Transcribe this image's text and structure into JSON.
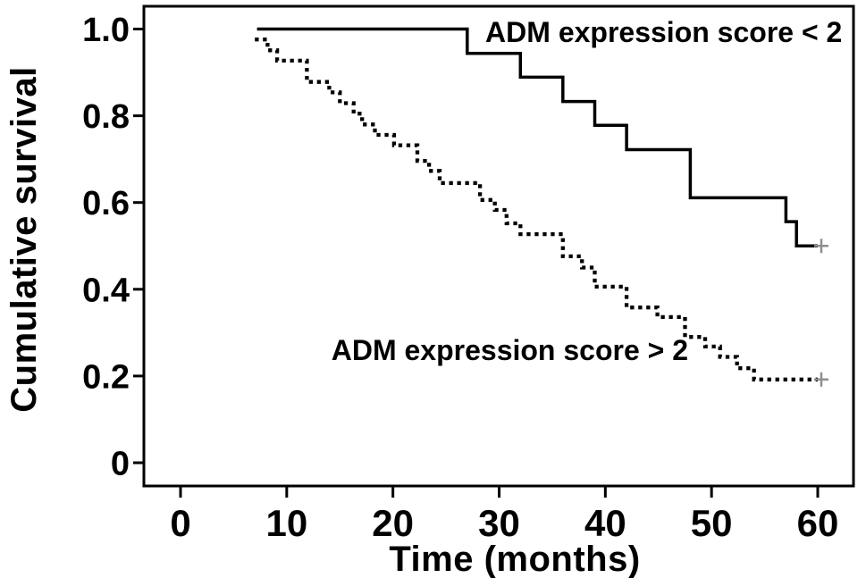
{
  "figure": {
    "kind_label": "Kaplan-Meier cumulative survival plot",
    "background_color": "#ffffff",
    "ink_color": "#000000",
    "censor_mark_color": "#8f8f8f"
  },
  "chart_data": {
    "type": "line",
    "variant": "kaplan_meier_step",
    "title": "",
    "xlabel": "Time (months)",
    "ylabel": "Cumulative survival",
    "x_ticks": [
      0,
      10,
      20,
      30,
      40,
      50,
      60
    ],
    "x_tick_labels": [
      "0",
      "10",
      "20",
      "30",
      "40",
      "50",
      "60"
    ],
    "y_ticks": [
      0,
      0.2,
      0.4,
      0.6,
      0.8,
      1.0
    ],
    "y_tick_labels": [
      "0",
      "0.2",
      "0.4",
      "0.6",
      "0.8",
      "1.0"
    ],
    "xlim": [
      -3.4,
      63.4
    ],
    "ylim": [
      -0.054,
      1.053
    ],
    "grid": false,
    "legend_position": "in-plot-annotations",
    "series": [
      {
        "name": "ADM expression score < 2",
        "line_style": "solid",
        "color": "#000000",
        "steps": [
          [
            7.2,
            1.0
          ],
          [
            27,
            0.944
          ],
          [
            32,
            0.889
          ],
          [
            36,
            0.833
          ],
          [
            39,
            0.778
          ],
          [
            42,
            0.722
          ],
          [
            48,
            0.611
          ],
          [
            57,
            0.556
          ],
          [
            58,
            0.5
          ]
        ],
        "end_time": 60,
        "censored": [
          [
            60,
            0.5
          ]
        ]
      },
      {
        "name": "ADM expression score > 2",
        "line_style": "dotted",
        "color": "#000000",
        "steps": [
          [
            7,
            0.976
          ],
          [
            8.2,
            0.951
          ],
          [
            9.1,
            0.927
          ],
          [
            11.9,
            0.878
          ],
          [
            14,
            0.854
          ],
          [
            15,
            0.829
          ],
          [
            16.3,
            0.805
          ],
          [
            17.1,
            0.78
          ],
          [
            18.3,
            0.756
          ],
          [
            20.1,
            0.732
          ],
          [
            22.3,
            0.696
          ],
          [
            23.4,
            0.673
          ],
          [
            24.4,
            0.645
          ],
          [
            28.2,
            0.606
          ],
          [
            29.6,
            0.583
          ],
          [
            30.7,
            0.552
          ],
          [
            32,
            0.527
          ],
          [
            36,
            0.476
          ],
          [
            37.8,
            0.45
          ],
          [
            39,
            0.406
          ],
          [
            42,
            0.358
          ],
          [
            44.9,
            0.336
          ],
          [
            47.5,
            0.29
          ],
          [
            49.4,
            0.268
          ],
          [
            50.8,
            0.244
          ],
          [
            52.4,
            0.218
          ],
          [
            54,
            0.192
          ]
        ],
        "end_time": 60,
        "censored": [
          [
            60,
            0.192
          ]
        ]
      }
    ],
    "annotations": [
      {
        "text": "ADM expression score < 2",
        "x": 45.5,
        "y": 0.97
      },
      {
        "text": "ADM expression score > 2",
        "x": 31.0,
        "y": 0.237
      }
    ]
  }
}
